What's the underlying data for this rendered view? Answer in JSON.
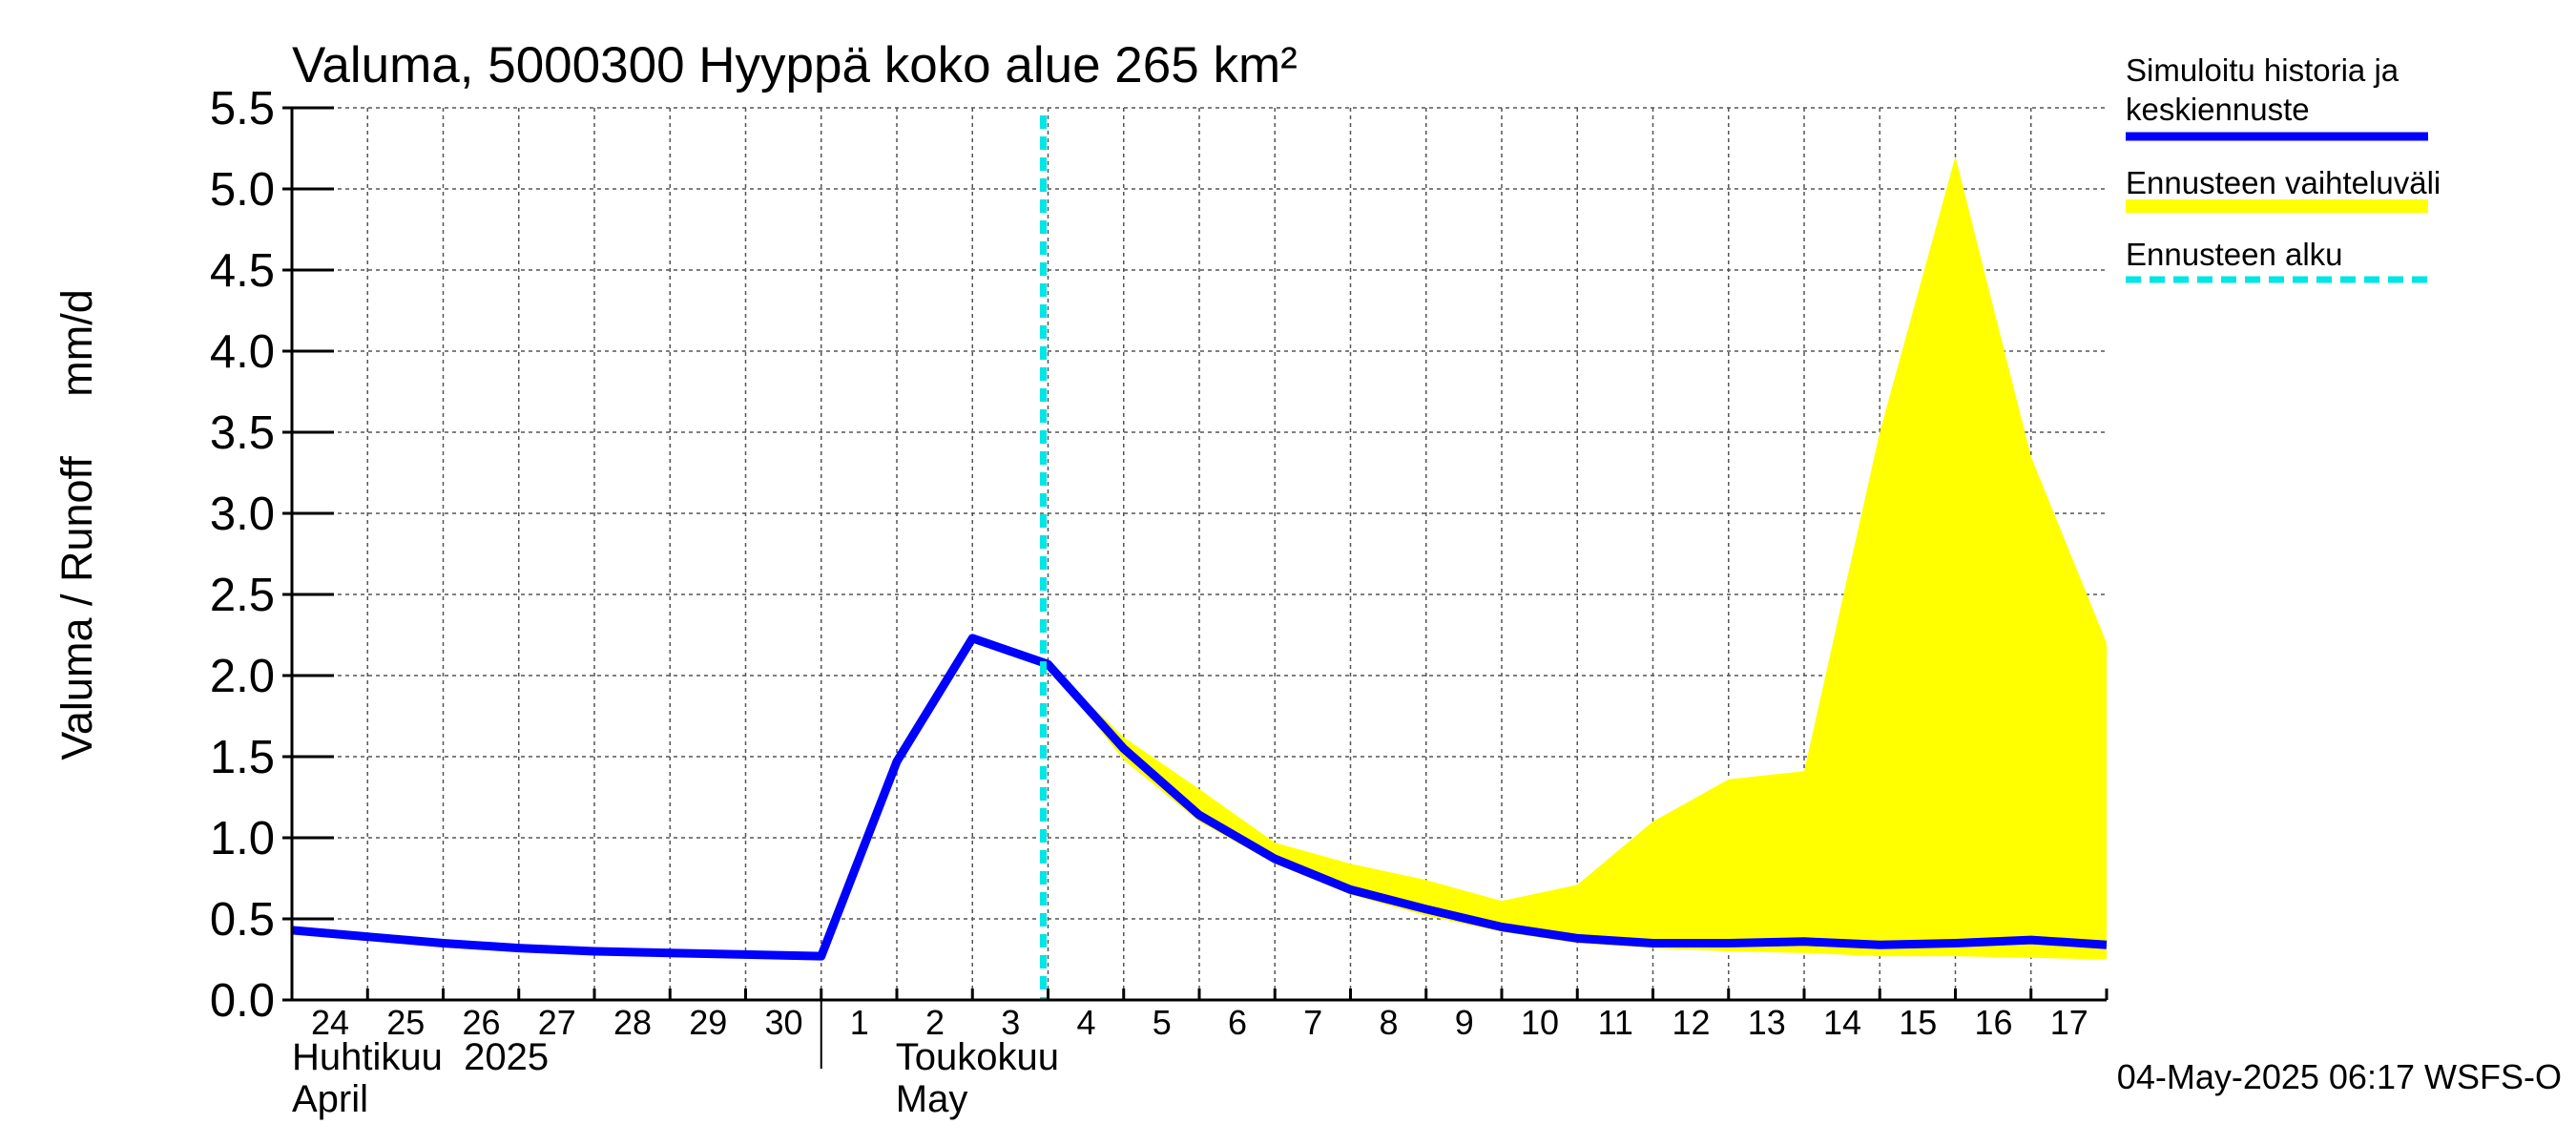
{
  "chart_data": {
    "type": "line",
    "title": "Valuma, 5000300 Hyyppä koko alue 265 km²",
    "ylabel": "Valuma / Runoff     mm/d",
    "ylim": [
      0,
      5.5
    ],
    "yticks": [
      0.0,
      0.5,
      1.0,
      1.5,
      2.0,
      2.5,
      3.0,
      3.5,
      4.0,
      4.5,
      5.0,
      5.5
    ],
    "ytick_labels": [
      "0.0",
      "0.5",
      "1.0",
      "1.5",
      "2.0",
      "2.5",
      "3.0",
      "3.5",
      "4.0",
      "4.5",
      "5.0",
      "5.5"
    ],
    "x_start": "2025-04-24",
    "x_end": "2025-05-18",
    "day_labels": [
      {
        "date": "2025-04-24",
        "label": "24"
      },
      {
        "date": "2025-04-25",
        "label": "25"
      },
      {
        "date": "2025-04-26",
        "label": "26"
      },
      {
        "date": "2025-04-27",
        "label": "27"
      },
      {
        "date": "2025-04-28",
        "label": "28"
      },
      {
        "date": "2025-04-29",
        "label": "29"
      },
      {
        "date": "2025-04-30",
        "label": "30"
      },
      {
        "date": "2025-05-01",
        "label": "1"
      },
      {
        "date": "2025-05-02",
        "label": "2"
      },
      {
        "date": "2025-05-03",
        "label": "3"
      },
      {
        "date": "2025-05-04",
        "label": "4"
      },
      {
        "date": "2025-05-05",
        "label": "5"
      },
      {
        "date": "2025-05-06",
        "label": "6"
      },
      {
        "date": "2025-05-07",
        "label": "7"
      },
      {
        "date": "2025-05-08",
        "label": "8"
      },
      {
        "date": "2025-05-09",
        "label": "9"
      },
      {
        "date": "2025-05-10",
        "label": "10"
      },
      {
        "date": "2025-05-11",
        "label": "11"
      },
      {
        "date": "2025-05-12",
        "label": "12"
      },
      {
        "date": "2025-05-13",
        "label": "13"
      },
      {
        "date": "2025-05-14",
        "label": "14"
      },
      {
        "date": "2025-05-15",
        "label": "15"
      },
      {
        "date": "2025-05-16",
        "label": "16"
      },
      {
        "date": "2025-05-17",
        "label": "17"
      }
    ],
    "month_labels": [
      {
        "date": "2025-04-24",
        "line1": "Huhtikuu  2025",
        "line2": "April"
      },
      {
        "date": "2025-05-01",
        "line1": "Toukokuu",
        "line2": "May"
      }
    ],
    "grid": true,
    "forecast_start": "2025-05-04",
    "series": [
      {
        "name": "Simuloitu historia ja keskiennuste",
        "color": "#0000ff",
        "points": [
          [
            "2025-04-24",
            0.43
          ],
          [
            "2025-04-25",
            0.39
          ],
          [
            "2025-04-26",
            0.35
          ],
          [
            "2025-04-27",
            0.32
          ],
          [
            "2025-04-28",
            0.3
          ],
          [
            "2025-04-29",
            0.29
          ],
          [
            "2025-04-30",
            0.28
          ],
          [
            "2025-05-01",
            0.27
          ],
          [
            "2025-05-02",
            1.47
          ],
          [
            "2025-05-03",
            2.23
          ],
          [
            "2025-05-04",
            2.07
          ],
          [
            "2025-05-05",
            1.55
          ],
          [
            "2025-05-06",
            1.14
          ],
          [
            "2025-05-07",
            0.87
          ],
          [
            "2025-05-08",
            0.68
          ],
          [
            "2025-05-09",
            0.56
          ],
          [
            "2025-05-10",
            0.45
          ],
          [
            "2025-05-11",
            0.38
          ],
          [
            "2025-05-12",
            0.35
          ],
          [
            "2025-05-13",
            0.35
          ],
          [
            "2025-05-14",
            0.36
          ],
          [
            "2025-05-15",
            0.34
          ],
          [
            "2025-05-16",
            0.35
          ],
          [
            "2025-05-17",
            0.37
          ],
          [
            "2025-05-18",
            0.34
          ]
        ]
      },
      {
        "name": "Ennusteen vaihteluväli",
        "color": "#ffff00",
        "band": [
          [
            "2025-05-04",
            2.07,
            2.07
          ],
          [
            "2025-05-05",
            1.48,
            1.62
          ],
          [
            "2025-05-06",
            1.1,
            1.3
          ],
          [
            "2025-05-07",
            0.84,
            0.97
          ],
          [
            "2025-05-08",
            0.65,
            0.84
          ],
          [
            "2025-05-09",
            0.52,
            0.74
          ],
          [
            "2025-05-10",
            0.42,
            0.61
          ],
          [
            "2025-05-11",
            0.35,
            0.71
          ],
          [
            "2025-05-12",
            0.32,
            1.1
          ],
          [
            "2025-05-13",
            0.3,
            1.36
          ],
          [
            "2025-05-14",
            0.29,
            1.41
          ],
          [
            "2025-05-15",
            0.27,
            3.5
          ],
          [
            "2025-05-16",
            0.27,
            5.2
          ],
          [
            "2025-05-17",
            0.26,
            3.35
          ],
          [
            "2025-05-18",
            0.25,
            2.2
          ]
        ]
      },
      {
        "name": "Ennusteen alku",
        "color": "#00e5e5"
      }
    ],
    "legend": {
      "position": "right",
      "entries": [
        {
          "line1": "Simuloitu historia ja",
          "line2": "keskiennuste",
          "color": "#0000ff",
          "style": "solid"
        },
        {
          "line1": "Ennusteen vaihteluväli",
          "line2": "",
          "color": "#ffff00",
          "style": "band"
        },
        {
          "line1": "Ennusteen alku",
          "line2": "",
          "color": "#00e5e5",
          "style": "dashed"
        }
      ]
    },
    "footer": "04-May-2025 06:17 WSFS-O"
  }
}
